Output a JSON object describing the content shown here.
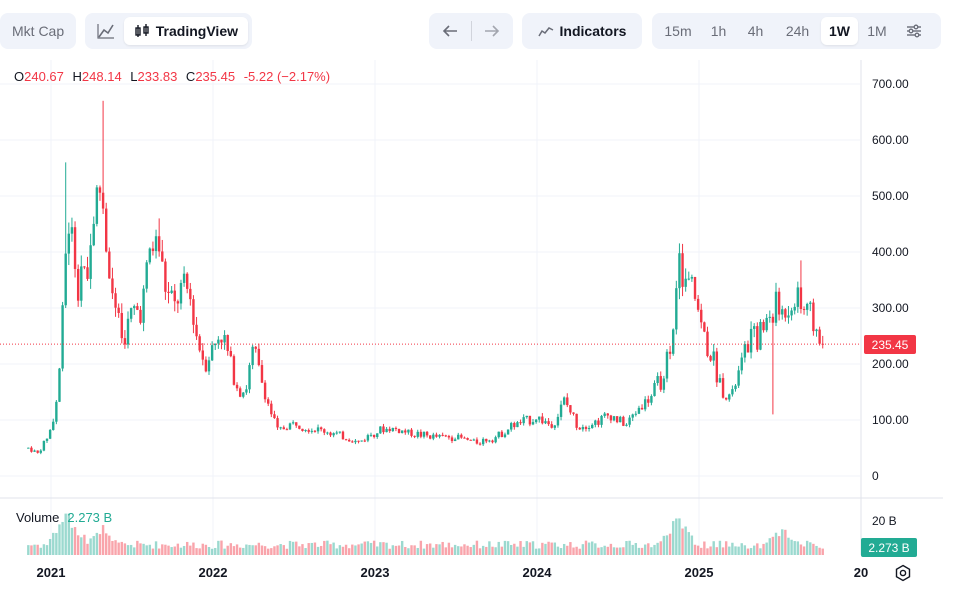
{
  "toolbar": {
    "mktcap_label": "Mkt Cap",
    "tradingview_label": "TradingView",
    "indicators_label": "Indicators",
    "intervals": [
      "15m",
      "1h",
      "4h",
      "24h",
      "1W",
      "1M"
    ],
    "active_interval": "1W"
  },
  "ohlc": {
    "o_key": "O",
    "o": "240.67",
    "h_key": "H",
    "h": "248.14",
    "l_key": "L",
    "l": "233.83",
    "c_key": "C",
    "c": "235.45",
    "change": "-5.22 (−2.17%)"
  },
  "volume_legend": {
    "label": "Volume",
    "value": "2.273 B"
  },
  "price_tag": "235.45",
  "volume_tag": "2.273 B",
  "colors": {
    "up": "#22ab94",
    "down": "#f23645",
    "grid": "#f0f3fa",
    "axis_text": "#131722"
  },
  "chart_data": {
    "type": "candlestick",
    "interval": "1W",
    "last_close": 235.45,
    "y_ticks": [
      "700.00",
      "600.00",
      "500.00",
      "400.00",
      "300.00",
      "200.00",
      "100.00",
      "0"
    ],
    "ylim": [
      0,
      700
    ],
    "volume_tick": "20 B",
    "x_ticks": [
      "2021",
      "2022",
      "2023",
      "2024",
      "2025",
      "20"
    ],
    "x_tick_values": [
      2021.0,
      2022.0,
      2023.0,
      2024.0,
      2025.0,
      2026.0
    ],
    "price_anchors": [
      {
        "t": 2020.86,
        "p": 50
      },
      {
        "t": 2020.92,
        "p": 40
      },
      {
        "t": 2020.96,
        "p": 60
      },
      {
        "t": 2021.0,
        "p": 85
      },
      {
        "t": 2021.04,
        "p": 140
      },
      {
        "t": 2021.07,
        "p": 270
      },
      {
        "t": 2021.1,
        "p": 460
      },
      {
        "t": 2021.13,
        "p": 420
      },
      {
        "t": 2021.17,
        "p": 350
      },
      {
        "t": 2021.2,
        "p": 400
      },
      {
        "t": 2021.23,
        "p": 370
      },
      {
        "t": 2021.27,
        "p": 480
      },
      {
        "t": 2021.31,
        "p": 520
      },
      {
        "t": 2021.35,
        "p": 390
      },
      {
        "t": 2021.39,
        "p": 300
      },
      {
        "t": 2021.44,
        "p": 240
      },
      {
        "t": 2021.5,
        "p": 290
      },
      {
        "t": 2021.56,
        "p": 300
      },
      {
        "t": 2021.61,
        "p": 400
      },
      {
        "t": 2021.66,
        "p": 420
      },
      {
        "t": 2021.71,
        "p": 330
      },
      {
        "t": 2021.76,
        "p": 300
      },
      {
        "t": 2021.8,
        "p": 330
      },
      {
        "t": 2021.85,
        "p": 330
      },
      {
        "t": 2021.9,
        "p": 250
      },
      {
        "t": 2021.95,
        "p": 200
      },
      {
        "t": 2022.0,
        "p": 230
      },
      {
        "t": 2022.05,
        "p": 260
      },
      {
        "t": 2022.1,
        "p": 210
      },
      {
        "t": 2022.15,
        "p": 160
      },
      {
        "t": 2022.2,
        "p": 150
      },
      {
        "t": 2022.25,
        "p": 230
      },
      {
        "t": 2022.3,
        "p": 170
      },
      {
        "t": 2022.35,
        "p": 120
      },
      {
        "t": 2022.4,
        "p": 80
      },
      {
        "t": 2022.46,
        "p": 90
      },
      {
        "t": 2022.52,
        "p": 95
      },
      {
        "t": 2022.6,
        "p": 85
      },
      {
        "t": 2022.7,
        "p": 80
      },
      {
        "t": 2022.8,
        "p": 70
      },
      {
        "t": 2022.9,
        "p": 60
      },
      {
        "t": 2023.0,
        "p": 80
      },
      {
        "t": 2023.1,
        "p": 85
      },
      {
        "t": 2023.2,
        "p": 78
      },
      {
        "t": 2023.35,
        "p": 70
      },
      {
        "t": 2023.5,
        "p": 70
      },
      {
        "t": 2023.62,
        "p": 60
      },
      {
        "t": 2023.75,
        "p": 70
      },
      {
        "t": 2023.85,
        "p": 90
      },
      {
        "t": 2024.0,
        "p": 105
      },
      {
        "t": 2024.1,
        "p": 90
      },
      {
        "t": 2024.17,
        "p": 135
      },
      {
        "t": 2024.25,
        "p": 90
      },
      {
        "t": 2024.35,
        "p": 95
      },
      {
        "t": 2024.45,
        "p": 110
      },
      {
        "t": 2024.55,
        "p": 90
      },
      {
        "t": 2024.62,
        "p": 120
      },
      {
        "t": 2024.7,
        "p": 140
      },
      {
        "t": 2024.78,
        "p": 180
      },
      {
        "t": 2024.84,
        "p": 270
      },
      {
        "t": 2024.88,
        "p": 370
      },
      {
        "t": 2024.93,
        "p": 340
      },
      {
        "t": 2024.97,
        "p": 330
      },
      {
        "t": 2025.02,
        "p": 260
      },
      {
        "t": 2025.08,
        "p": 210
      },
      {
        "t": 2025.14,
        "p": 160
      },
      {
        "t": 2025.2,
        "p": 140
      },
      {
        "t": 2025.26,
        "p": 200
      },
      {
        "t": 2025.32,
        "p": 250
      },
      {
        "t": 2025.4,
        "p": 260
      },
      {
        "t": 2025.46,
        "p": 300
      },
      {
        "t": 2025.52,
        "p": 290
      },
      {
        "t": 2025.58,
        "p": 320
      },
      {
        "t": 2025.62,
        "p": 300
      },
      {
        "t": 2025.68,
        "p": 290
      },
      {
        "t": 2025.74,
        "p": 250
      },
      {
        "t": 2025.78,
        "p": 235.45
      }
    ],
    "spikes": [
      {
        "t": 2021.33,
        "h": 670
      },
      {
        "t": 2021.1,
        "h": 560
      },
      {
        "t": 2021.66,
        "h": 460
      },
      {
        "t": 2024.89,
        "h": 400
      },
      {
        "t": 2025.62,
        "h": 385
      },
      {
        "t": 2025.45,
        "l": 110
      }
    ],
    "volume": {
      "base": 0.25,
      "peaks": [
        {
          "t": 2021.1,
          "v": 1.0
        },
        {
          "t": 2021.3,
          "v": 0.55
        },
        {
          "t": 2024.88,
          "v": 0.85
        },
        {
          "t": 2025.5,
          "v": 0.45
        }
      ],
      "last": 2.273
    }
  }
}
